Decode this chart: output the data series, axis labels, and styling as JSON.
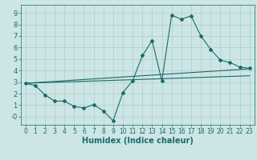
{
  "title": "",
  "xlabel": "Humidex (Indice chaleur)",
  "bg_color": "#cde5e5",
  "line_color": "#1a6b6b",
  "grid_color": "#aacfcf",
  "xlim": [
    -0.5,
    23.5
  ],
  "ylim": [
    -0.7,
    9.7
  ],
  "line1_x": [
    0,
    1,
    2,
    3,
    4,
    5,
    6,
    7,
    8,
    9,
    10,
    11,
    12,
    13,
    14,
    15,
    16,
    17,
    18,
    19,
    20,
    21,
    22,
    23
  ],
  "line1_y": [
    2.9,
    2.7,
    1.9,
    1.35,
    1.35,
    0.9,
    0.75,
    1.05,
    0.5,
    -0.35,
    2.1,
    3.1,
    5.3,
    6.6,
    3.1,
    8.8,
    8.45,
    8.75,
    7.0,
    5.85,
    4.9,
    4.7,
    4.3,
    4.2
  ],
  "line2_x": [
    0,
    23
  ],
  "line2_y": [
    2.9,
    4.15
  ],
  "line3_x": [
    0,
    23
  ],
  "line3_y": [
    2.9,
    3.55
  ],
  "font_size_xlabel": 7,
  "tick_labelsize": 6
}
